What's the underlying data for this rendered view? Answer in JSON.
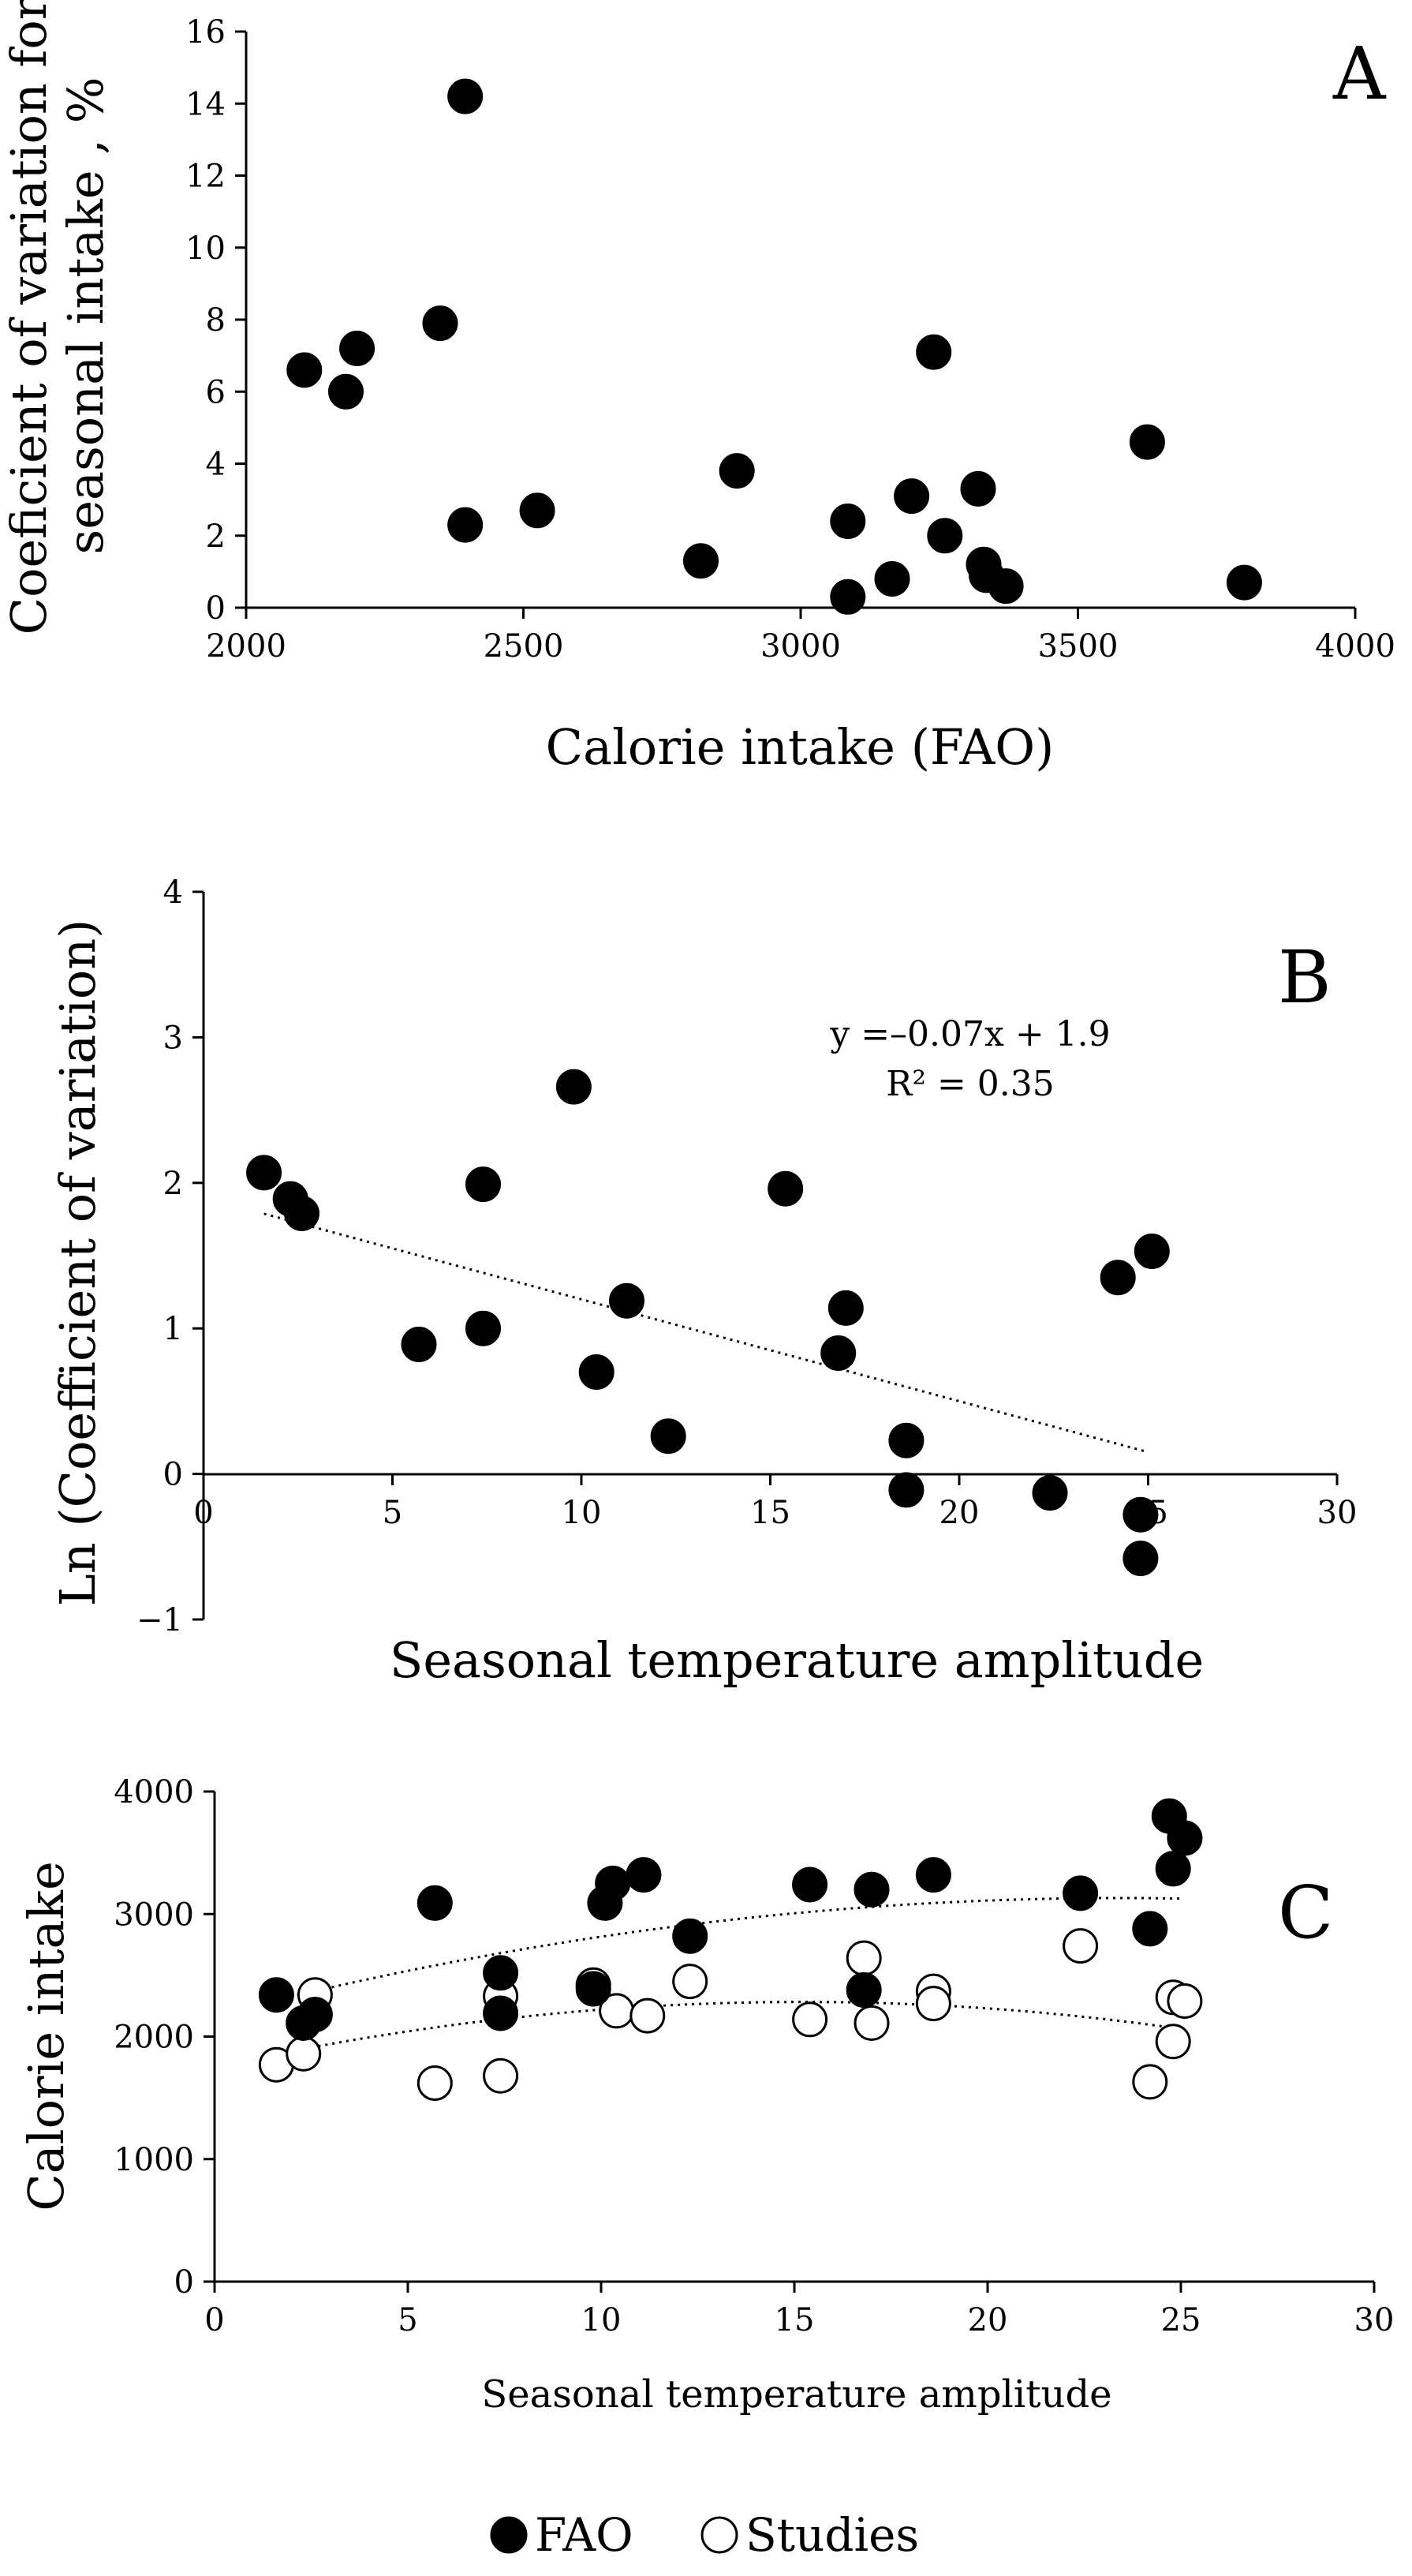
{
  "chart_data": [
    {
      "type": "scatter",
      "panel": "A",
      "xlabel": "Calorie intake (FAO)",
      "ylabel_lines": [
        "Coeficient of variation for",
        "seasonal intake , %"
      ],
      "xlim": [
        2000,
        4000
      ],
      "ylim": [
        0,
        16
      ],
      "xticks": [
        2000,
        2500,
        3000,
        3500,
        4000
      ],
      "yticks": [
        0,
        2,
        4,
        6,
        8,
        10,
        12,
        14,
        16
      ],
      "series": [
        {
          "name": "FAO",
          "marker": "filled",
          "points": [
            [
              2105,
              6.6
            ],
            [
              2180,
              6.0
            ],
            [
              2200,
              7.2
            ],
            [
              2350,
              7.9
            ],
            [
              2395,
              14.2
            ],
            [
              2395,
              2.3
            ],
            [
              2525,
              2.7
            ],
            [
              2820,
              1.3
            ],
            [
              2885,
              3.8
            ],
            [
              3085,
              2.4
            ],
            [
              3085,
              0.3
            ],
            [
              3165,
              0.8
            ],
            [
              3200,
              3.1
            ],
            [
              3240,
              7.1
            ],
            [
              3260,
              2.0
            ],
            [
              3320,
              3.3
            ],
            [
              3330,
              1.2
            ],
            [
              3335,
              0.9
            ],
            [
              3370,
              0.6
            ],
            [
              3625,
              4.6
            ],
            [
              3800,
              0.7
            ]
          ]
        }
      ]
    },
    {
      "type": "scatter",
      "panel": "B",
      "xlabel": "Seasonal temperature amplitude",
      "ylabel": "Ln (Coefficient of variation)",
      "xlim": [
        0,
        30
      ],
      "ylim": [
        -1,
        4
      ],
      "xticks": [
        0,
        5,
        10,
        15,
        20,
        25,
        30
      ],
      "yticks": [
        -1,
        0,
        1,
        2,
        3,
        4
      ],
      "trendline": {
        "slope": -0.07,
        "intercept": 1.9,
        "x_range": [
          1.6,
          25.0
        ]
      },
      "equation": "y =–0.07x + 1.9",
      "r2": "R² = 0.35",
      "series": [
        {
          "name": "FAO",
          "marker": "filled",
          "points": [
            [
              1.6,
              2.07
            ],
            [
              2.3,
              1.89
            ],
            [
              2.6,
              1.79
            ],
            [
              5.7,
              0.89
            ],
            [
              7.4,
              1.99
            ],
            [
              7.4,
              1.0
            ],
            [
              9.8,
              2.66
            ],
            [
              10.4,
              0.7
            ],
            [
              11.2,
              1.19
            ],
            [
              12.3,
              0.26
            ],
            [
              15.4,
              1.96
            ],
            [
              16.8,
              0.83
            ],
            [
              17.0,
              1.14
            ],
            [
              18.6,
              0.23
            ],
            [
              18.6,
              -0.11
            ],
            [
              22.4,
              -0.13
            ],
            [
              24.2,
              1.35
            ],
            [
              24.8,
              -0.28
            ],
            [
              24.8,
              -0.58
            ],
            [
              25.1,
              1.53
            ]
          ]
        }
      ]
    },
    {
      "type": "scatter",
      "panel": "C",
      "xlabel": "Seasonal temperature amplitude",
      "ylabel": "Calorie intake",
      "xlim": [
        0,
        30
      ],
      "ylim": [
        0,
        4000
      ],
      "xticks": [
        0,
        5,
        10,
        15,
        20,
        25,
        30
      ],
      "yticks": [
        0,
        1000,
        2000,
        3000,
        4000
      ],
      "series": [
        {
          "name": "FAO",
          "marker": "filled",
          "points": [
            [
              1.6,
              2340
            ],
            [
              2.3,
              2110
            ],
            [
              2.6,
              2180
            ],
            [
              5.7,
              3090
            ],
            [
              7.4,
              2520
            ],
            [
              7.4,
              2190
            ],
            [
              9.8,
              2390
            ],
            [
              10.1,
              3090
            ],
            [
              10.3,
              3250
            ],
            [
              11.1,
              3320
            ],
            [
              12.3,
              2820
            ],
            [
              15.4,
              3240
            ],
            [
              16.8,
              2380
            ],
            [
              17.0,
              3200
            ],
            [
              18.6,
              3320
            ],
            [
              22.4,
              3170
            ],
            [
              24.2,
              2880
            ],
            [
              24.7,
              3800
            ],
            [
              24.8,
              3370
            ],
            [
              25.1,
              3620
            ]
          ],
          "trend": {
            "a": -1.75,
            "b": 82,
            "c": 2170,
            "x_range": [
              1.6,
              25.0
            ]
          }
        },
        {
          "name": "Studies",
          "marker": "open",
          "points": [
            [
              1.6,
              1770
            ],
            [
              2.3,
              1860
            ],
            [
              2.6,
              2340
            ],
            [
              5.7,
              1620
            ],
            [
              7.4,
              2330
            ],
            [
              7.4,
              1680
            ],
            [
              9.8,
              2420
            ],
            [
              10.4,
              2210
            ],
            [
              11.2,
              2170
            ],
            [
              12.3,
              2450
            ],
            [
              15.4,
              2140
            ],
            [
              16.8,
              2640
            ],
            [
              17.0,
              2110
            ],
            [
              18.6,
              2370
            ],
            [
              18.6,
              2270
            ],
            [
              22.4,
              2740
            ],
            [
              24.2,
              1630
            ],
            [
              24.8,
              2320
            ],
            [
              24.8,
              1960
            ],
            [
              25.1,
              2290
            ]
          ],
          "trend": {
            "a": -2.3,
            "b": 70,
            "c": 1750,
            "x_range": [
              1.6,
              25.0
            ]
          }
        }
      ]
    }
  ],
  "legend": [
    {
      "label": "FAO",
      "marker": "filled"
    },
    {
      "label": "Studies",
      "marker": "open"
    }
  ]
}
